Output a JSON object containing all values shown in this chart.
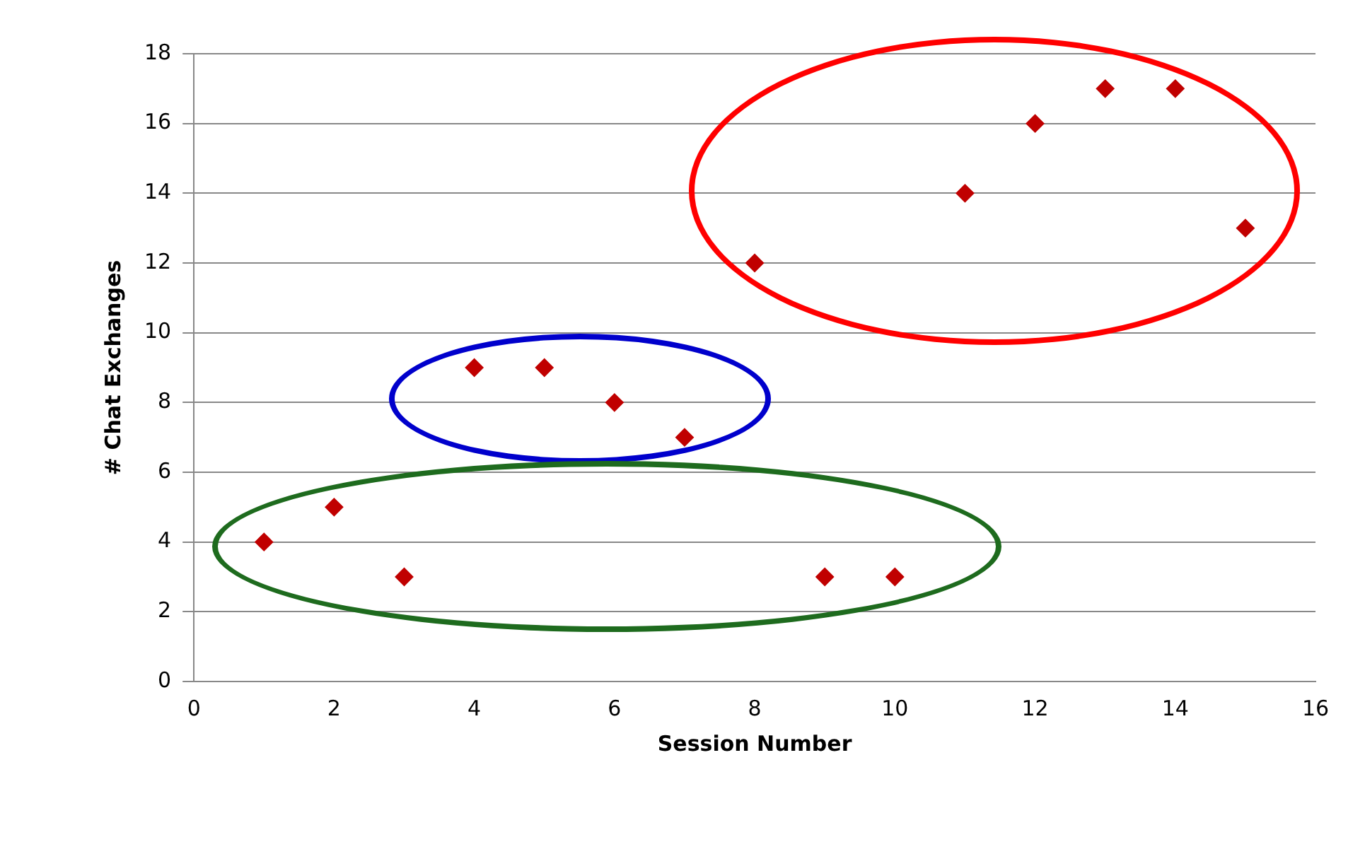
{
  "chart_data": {
    "type": "scatter",
    "xlabel": "Session Number",
    "ylabel": "# Chat Exchanges",
    "x": [
      1,
      2,
      3,
      4,
      5,
      6,
      7,
      8,
      9,
      10,
      11,
      12,
      13,
      14,
      15
    ],
    "series": [
      {
        "color": "#c00000",
        "values": [
          4,
          5,
          3,
          9,
          9,
          8,
          7,
          12,
          3,
          3,
          14,
          16,
          17,
          17,
          13
        ]
      }
    ],
    "xlim": [
      0,
      16
    ],
    "xticks": [
      0,
      2,
      4,
      6,
      8,
      10,
      12,
      14,
      16
    ],
    "ylim": [
      0,
      18
    ],
    "yticks": [
      0,
      2,
      4,
      6,
      8,
      10,
      12,
      14,
      16,
      18
    ],
    "grid": "y",
    "legend": false,
    "marker": "diamond"
  }
}
